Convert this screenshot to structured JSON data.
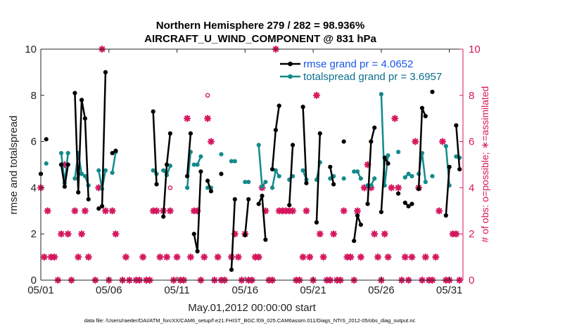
{
  "colors": {
    "rmse": "#000000",
    "totalspread": "#138a8a",
    "obs": "#d6175f",
    "legend_rmse_text": "#1a56e8",
    "legend_spread_text": "#0b6e8c"
  },
  "chart_data": {
    "type": "line",
    "title_line1": "Northern Hemisphere 279 / 282 = 98.936%",
    "title_line2": "AIRCRAFT_U_WIND_COMPONENT @ 831 hPa",
    "xlabel": "May.01,2012 00:00:00 start",
    "ylabel_left": "rmse and totalspread",
    "ylabel_right": "# of obs: o=possible; ∗=assimilated",
    "xlim": [
      0,
      31
    ],
    "ylim_left": [
      0,
      10
    ],
    "ylim_right": [
      0,
      10
    ],
    "x_ticks": [
      0,
      5,
      10,
      15,
      20,
      25,
      30
    ],
    "x_tick_labels": [
      "05/01",
      "05/06",
      "05/11",
      "05/16",
      "05/21",
      "05/26",
      "05/31"
    ],
    "y_ticks": [
      0,
      2,
      4,
      6,
      8,
      10
    ],
    "y_tick_labels_left": [
      "0",
      "2",
      "4",
      "6",
      "8",
      "10"
    ],
    "y_tick_labels_right": [
      "0",
      "2",
      "4",
      "6",
      "8",
      "10"
    ],
    "legend": [
      {
        "label": "rmse grand pr = 4.0652"
      },
      {
        "label": "totalspread grand pr = 3.6957"
      }
    ],
    "series": [
      {
        "name": "rmse",
        "segments": [
          [
            [
              0.0,
              4.6
            ]
          ],
          [
            [
              0.4,
              6.1
            ]
          ],
          [
            [
              1.5,
              5.0
            ],
            [
              1.75,
              4.05
            ],
            [
              2.0,
              5.0
            ]
          ],
          [
            [
              2.5,
              8.1
            ],
            [
              2.75,
              3.8
            ],
            [
              3.0,
              7.8
            ],
            [
              3.25,
              7.0
            ],
            [
              3.5,
              3.5
            ]
          ],
          [
            [
              4.25,
              3.1
            ],
            [
              4.5,
              3.2
            ],
            [
              4.75,
              9.0
            ]
          ],
          [
            [
              5.25,
              5.5
            ],
            [
              5.5,
              5.6
            ]
          ],
          [
            [
              8.25,
              7.3
            ],
            [
              8.5,
              4.15
            ]
          ],
          [
            [
              9.0,
              2.75
            ],
            [
              9.25,
              5.0
            ],
            [
              9.5,
              6.35
            ]
          ],
          [
            [
              10.75,
              4.5
            ],
            [
              11.0,
              6.35
            ]
          ],
          [
            [
              11.25,
              2.0
            ],
            [
              11.5,
              1.25
            ],
            [
              11.75,
              4.7
            ]
          ],
          [
            [
              12.25,
              4.3
            ],
            [
              12.5,
              3.85
            ]
          ],
          [
            [
              13.25,
              4.6
            ]
          ],
          [
            [
              14.0,
              0.45
            ],
            [
              14.25,
              3.5
            ]
          ],
          [
            [
              15.0,
              1.95
            ],
            [
              15.25,
              3.5
            ]
          ],
          [
            [
              16.0,
              3.3
            ],
            [
              16.25,
              3.65
            ],
            [
              16.5,
              1.75
            ]
          ],
          [
            [
              17.0,
              4.8
            ],
            [
              17.25,
              6.5
            ],
            [
              17.5,
              7.55
            ]
          ],
          [
            [
              18.25,
              3.25
            ],
            [
              18.5,
              5.85
            ]
          ],
          [
            [
              19.25,
              7.5
            ],
            [
              19.5,
              4.2
            ]
          ],
          [
            [
              20.25,
              2.5
            ],
            [
              20.5,
              6.35
            ]
          ],
          [
            [
              21.25,
              4.9
            ],
            [
              21.5,
              4.15
            ]
          ],
          [
            [
              22.25,
              6.0
            ]
          ],
          [
            [
              23.0,
              1.7
            ],
            [
              23.25,
              2.8
            ],
            [
              23.5,
              2.4
            ]
          ],
          [
            [
              24.0,
              3.3
            ],
            [
              24.25,
              6.0
            ],
            [
              24.5,
              6.6
            ]
          ],
          [
            [
              25.0,
              2.95
            ],
            [
              25.25,
              5.3
            ],
            [
              25.5,
              5.05
            ]
          ],
          [
            [
              26.25,
              3.75
            ]
          ],
          [
            [
              26.75,
              3.35
            ],
            [
              27.0,
              3.2
            ]
          ],
          [
            [
              27.25,
              3.3
            ]
          ],
          [
            [
              27.75,
              3.95
            ],
            [
              28.0,
              7.45
            ],
            [
              28.25,
              7.1
            ]
          ],
          [
            [
              28.75,
              8.15
            ]
          ],
          [
            [
              29.75,
              2.8
            ],
            [
              30.0,
              4.9
            ]
          ],
          [
            [
              30.5,
              6.7
            ],
            [
              30.75,
              4.8
            ]
          ]
        ]
      },
      {
        "name": "totalspread",
        "segments": [
          [
            [
              0.0,
              4.6
            ]
          ],
          [
            [
              0.4,
              5.05
            ]
          ],
          [
            [
              1.5,
              5.5
            ],
            [
              1.75,
              4.2
            ],
            [
              2.0,
              5.5
            ]
          ],
          [
            [
              2.5,
              4.4
            ],
            [
              2.75,
              5.5
            ],
            [
              3.0,
              4.6
            ],
            [
              3.25,
              4.5
            ],
            [
              3.5,
              4.1
            ]
          ],
          [
            [
              4.25,
              4.75
            ],
            [
              4.5,
              3.95
            ],
            [
              4.75,
              4.75
            ]
          ],
          [
            [
              5.25,
              4.65
            ],
            [
              5.5,
              5.55
            ]
          ],
          [
            [
              8.25,
              4.75
            ],
            [
              8.5,
              4.6
            ]
          ],
          [
            [
              9.0,
              4.75
            ],
            [
              9.25,
              4.55
            ],
            [
              9.5,
              4.95
            ]
          ],
          [
            [
              10.75,
              4.0
            ],
            [
              11.0,
              5.55
            ]
          ],
          [
            [
              11.25,
              5.0
            ],
            [
              11.5,
              5.0
            ],
            [
              11.75,
              5.35
            ]
          ],
          [
            [
              12.25,
              4.0
            ],
            [
              12.5,
              4.0
            ]
          ],
          [
            [
              13.25,
              5.45
            ]
          ],
          [
            [
              14.0,
              5.15
            ],
            [
              14.25,
              5.15
            ]
          ],
          [
            [
              15.0,
              4.25
            ],
            [
              15.25,
              4.25
            ]
          ],
          [
            [
              16.0,
              5.85
            ],
            [
              16.25,
              4.05
            ],
            [
              16.5,
              4.25
            ]
          ],
          [
            [
              17.0,
              4.0
            ],
            [
              17.25,
              4.75
            ],
            [
              17.5,
              4.5
            ]
          ],
          [
            [
              18.25,
              4.35
            ],
            [
              18.5,
              4.5
            ]
          ],
          [
            [
              19.25,
              4.75
            ],
            [
              19.5,
              4.35
            ]
          ],
          [
            [
              20.25,
              4.35
            ],
            [
              20.5,
              5.1
            ]
          ],
          [
            [
              21.25,
              4.4
            ],
            [
              21.5,
              4.5
            ]
          ],
          [
            [
              22.25,
              4.4
            ]
          ],
          [
            [
              23.0,
              4.7
            ],
            [
              23.25,
              4.7
            ],
            [
              23.5,
              4.4
            ]
          ],
          [
            [
              24.0,
              4.1
            ],
            [
              24.25,
              4.1
            ],
            [
              24.5,
              4.4
            ]
          ],
          [
            [
              25.0,
              8.05
            ],
            [
              25.25,
              4.1
            ],
            [
              25.5,
              5.4
            ]
          ],
          [
            [
              26.25,
              5.55
            ]
          ],
          [
            [
              26.75,
              4.45
            ],
            [
              27.0,
              4.6
            ]
          ],
          [
            [
              27.25,
              4.5
            ]
          ],
          [
            [
              27.75,
              4.6
            ],
            [
              28.0,
              5.5
            ],
            [
              28.25,
              4.25
            ]
          ],
          [
            [
              28.75,
              4.5
            ]
          ],
          [
            [
              29.75,
              5.8
            ],
            [
              30.0,
              4.1
            ]
          ],
          [
            [
              30.5,
              5.35
            ],
            [
              30.75,
              5.3
            ]
          ]
        ]
      },
      {
        "name": "obs_assimilated",
        "points": [
          [
            0.0,
            4
          ],
          [
            0.25,
            1
          ],
          [
            0.5,
            3
          ],
          [
            0.75,
            1
          ],
          [
            1.0,
            1
          ],
          [
            1.25,
            0
          ],
          [
            1.5,
            2
          ],
          [
            1.75,
            5
          ],
          [
            2.0,
            2
          ],
          [
            2.25,
            0
          ],
          [
            2.5,
            3
          ],
          [
            2.75,
            1
          ],
          [
            3.0,
            2
          ],
          [
            3.25,
            3
          ],
          [
            3.5,
            1
          ],
          [
            4.0,
            0
          ],
          [
            4.25,
            4
          ],
          [
            4.5,
            10
          ],
          [
            4.75,
            3
          ],
          [
            5.0,
            0
          ],
          [
            5.25,
            3
          ],
          [
            5.5,
            2
          ],
          [
            6.0,
            0
          ],
          [
            6.25,
            1
          ],
          [
            6.5,
            0
          ],
          [
            7.0,
            0
          ],
          [
            7.25,
            0
          ],
          [
            7.5,
            1
          ],
          [
            7.75,
            0
          ],
          [
            8.0,
            0
          ],
          [
            8.25,
            3
          ],
          [
            8.5,
            3
          ],
          [
            8.75,
            1
          ],
          [
            9.0,
            3
          ],
          [
            9.25,
            1
          ],
          [
            9.5,
            3
          ],
          [
            9.75,
            0
          ],
          [
            10.0,
            1
          ],
          [
            10.25,
            0
          ],
          [
            10.5,
            0
          ],
          [
            10.75,
            7
          ],
          [
            11.0,
            1
          ],
          [
            11.25,
            3
          ],
          [
            11.5,
            3
          ],
          [
            11.75,
            0
          ],
          [
            12.0,
            1
          ],
          [
            12.25,
            7
          ],
          [
            12.5,
            6
          ],
          [
            12.75,
            0
          ],
          [
            13.0,
            1
          ],
          [
            13.25,
            0
          ],
          [
            13.5,
            0
          ],
          [
            14.0,
            1
          ],
          [
            14.25,
            2
          ],
          [
            14.5,
            1
          ],
          [
            14.75,
            0
          ],
          [
            15.0,
            2
          ],
          [
            15.25,
            0
          ],
          [
            15.5,
            0
          ],
          [
            15.75,
            1
          ],
          [
            16.0,
            1
          ],
          [
            16.25,
            4
          ],
          [
            16.5,
            3
          ],
          [
            16.75,
            0
          ],
          [
            17.0,
            0
          ],
          [
            17.25,
            10
          ],
          [
            17.5,
            3
          ],
          [
            17.75,
            3
          ],
          [
            18.0,
            3
          ],
          [
            18.25,
            3
          ],
          [
            18.5,
            3
          ],
          [
            18.75,
            0
          ],
          [
            19.0,
            0
          ],
          [
            19.25,
            1
          ],
          [
            19.5,
            3
          ],
          [
            19.75,
            1
          ],
          [
            20.0,
            0
          ],
          [
            20.25,
            8
          ],
          [
            20.5,
            2
          ],
          [
            20.75,
            1
          ],
          [
            21.0,
            0
          ],
          [
            21.25,
            0
          ],
          [
            21.5,
            2
          ],
          [
            21.75,
            0
          ],
          [
            22.0,
            0
          ],
          [
            22.25,
            3
          ],
          [
            22.5,
            1
          ],
          [
            22.75,
            1
          ],
          [
            23.0,
            0
          ],
          [
            23.25,
            3
          ],
          [
            23.5,
            1
          ],
          [
            23.75,
            4
          ],
          [
            24.0,
            5
          ],
          [
            24.25,
            4
          ],
          [
            24.5,
            2
          ],
          [
            24.75,
            1
          ],
          [
            25.0,
            0
          ],
          [
            25.25,
            2
          ],
          [
            25.5,
            1
          ],
          [
            25.75,
            4
          ],
          [
            26.0,
            7
          ],
          [
            26.25,
            4
          ],
          [
            26.5,
            0
          ],
          [
            26.75,
            1
          ],
          [
            27.0,
            0
          ],
          [
            27.25,
            1
          ],
          [
            27.5,
            6
          ],
          [
            27.75,
            4
          ],
          [
            28.0,
            0
          ],
          [
            28.25,
            1
          ],
          [
            28.5,
            0
          ],
          [
            28.75,
            0
          ],
          [
            29.0,
            1
          ],
          [
            29.25,
            3
          ],
          [
            29.5,
            6
          ],
          [
            29.75,
            0
          ],
          [
            30.0,
            0
          ],
          [
            30.25,
            2
          ],
          [
            30.5,
            2
          ],
          [
            30.75,
            0
          ]
        ]
      },
      {
        "name": "obs_possible",
        "points": [
          [
            9.5,
            4
          ],
          [
            12.25,
            8
          ]
        ]
      }
    ]
  },
  "footnote": "data file: /Users/raeder/DAI/ATM_forcXX/CAM6_setup/f.e21.FHIST_BGC.f09_025.CAM6assim.011/Diags_NTrS_2012-05/obs_diag_output.nc"
}
